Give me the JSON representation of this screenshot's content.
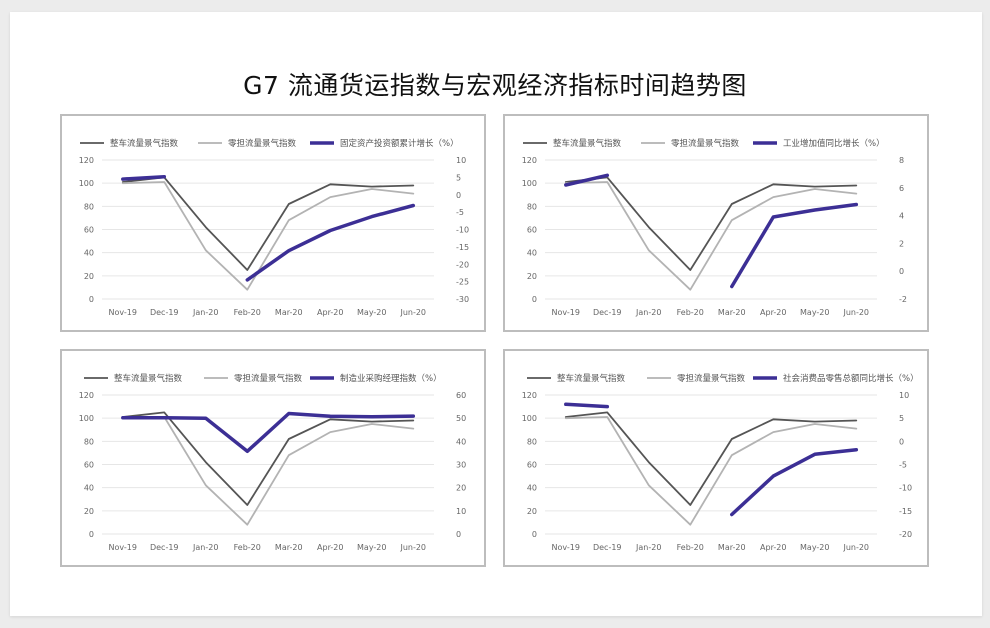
{
  "title": "G7 流通货运指数与宏观经济指标时间趋势图",
  "colors": {
    "line1": "#555555",
    "line2": "#b3b3b3",
    "line3": "#3c2f95",
    "grid": "#e6e6e6"
  },
  "chart_data": [
    {
      "type": "line",
      "categories": [
        "Nov-19",
        "Dec-19",
        "Jan-20",
        "Feb-20",
        "Mar-20",
        "Apr-20",
        "May-20",
        "Jun-20"
      ],
      "ylim": [
        0,
        120
      ],
      "yticks": [
        0,
        20,
        40,
        60,
        80,
        100,
        120
      ],
      "y2lim": [
        -30,
        10
      ],
      "y2ticks": [
        -30,
        -25,
        -20,
        -15,
        -10,
        -5,
        0,
        5,
        10
      ],
      "series": [
        {
          "name": "整车流量景气指数",
          "axis": "left",
          "values": [
            101,
            105,
            62,
            25,
            82,
            99,
            97,
            98
          ]
        },
        {
          "name": "零担流量景气指数",
          "axis": "left",
          "values": [
            100,
            101,
            42,
            8,
            68,
            88,
            95,
            91
          ]
        },
        {
          "name": "固定资产投资额累计增长（%）",
          "axis": "right",
          "values": [
            4.5,
            5.2,
            null,
            -24.5,
            -16.1,
            -10.3,
            -6.3,
            -3.1
          ]
        }
      ]
    },
    {
      "type": "line",
      "categories": [
        "Nov-19",
        "Dec-19",
        "Jan-20",
        "Feb-20",
        "Mar-20",
        "Apr-20",
        "May-20",
        "Jun-20"
      ],
      "ylim": [
        0,
        120
      ],
      "yticks": [
        0,
        20,
        40,
        60,
        80,
        100,
        120
      ],
      "y2lim": [
        -2,
        8
      ],
      "y2ticks": [
        -2,
        0,
        2,
        4,
        6,
        8
      ],
      "series": [
        {
          "name": "整车流量景气指数",
          "axis": "left",
          "values": [
            101,
            105,
            62,
            25,
            82,
            99,
            97,
            98
          ]
        },
        {
          "name": "零担流量景气指数",
          "axis": "left",
          "values": [
            100,
            101,
            42,
            8,
            68,
            88,
            95,
            91
          ]
        },
        {
          "name": "工业增加值同比增长（%）",
          "axis": "right",
          "values": [
            6.2,
            6.9,
            null,
            null,
            -1.1,
            3.9,
            4.4,
            4.8
          ]
        }
      ]
    },
    {
      "type": "line",
      "categories": [
        "Nov-19",
        "Dec-19",
        "Jan-20",
        "Feb-20",
        "Mar-20",
        "Apr-20",
        "May-20",
        "Jun-20"
      ],
      "ylim": [
        0,
        120
      ],
      "yticks": [
        0,
        20,
        40,
        60,
        80,
        100,
        120
      ],
      "y2lim": [
        0,
        60
      ],
      "y2ticks": [
        0,
        10,
        20,
        30,
        40,
        50,
        60
      ],
      "series": [
        {
          "name": "整车流量景气指数",
          "axis": "left",
          "values": [
            101,
            105,
            62,
            25,
            82,
            99,
            97,
            98
          ]
        },
        {
          "name": "零担流量景气指数",
          "axis": "left",
          "values": [
            100,
            101,
            42,
            8,
            68,
            88,
            95,
            91
          ]
        },
        {
          "name": "制造业采购经理指数（%）",
          "axis": "right",
          "values": [
            50.2,
            50.2,
            50.0,
            35.7,
            52.0,
            50.8,
            50.6,
            50.9
          ]
        }
      ]
    },
    {
      "type": "line",
      "categories": [
        "Nov-19",
        "Dec-19",
        "Jan-20",
        "Feb-20",
        "Mar-20",
        "Apr-20",
        "May-20",
        "Jun-20"
      ],
      "ylim": [
        0,
        120
      ],
      "yticks": [
        0,
        20,
        40,
        60,
        80,
        100,
        120
      ],
      "y2lim": [
        -20,
        10
      ],
      "y2ticks": [
        -20,
        -15,
        -10,
        -5,
        0,
        5,
        10
      ],
      "series": [
        {
          "name": "整车流量景气指数",
          "axis": "left",
          "values": [
            101,
            105,
            62,
            25,
            82,
            99,
            97,
            98
          ]
        },
        {
          "name": "零担流量景气指数",
          "axis": "left",
          "values": [
            100,
            101,
            42,
            8,
            68,
            88,
            95,
            91
          ]
        },
        {
          "name": "社会消费品零售总额同比增长（%）",
          "axis": "right",
          "values": [
            8.0,
            7.5,
            null,
            null,
            -15.8,
            -7.5,
            -2.8,
            -1.8
          ]
        }
      ]
    }
  ]
}
